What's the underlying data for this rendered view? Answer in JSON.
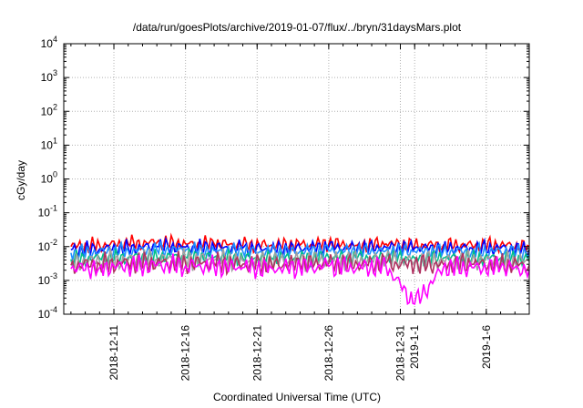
{
  "chart_data": {
    "type": "line",
    "title": "/data/run/goesPlots/archive/2019-01-07/flux/../bryn/31daysMars.plot",
    "xlabel": "Coordinated Universal Time (UTC)",
    "ylabel": "cGy/day",
    "yscale": "log",
    "ylim_exp": [
      -4,
      4
    ],
    "ylim": [
      0.0001,
      10000
    ],
    "xlim": [
      "2018-12-07T12:00",
      "2019-01-09T00:00"
    ],
    "grid": true,
    "legend": "none",
    "y_tick_base": "10",
    "y_tick_exponents": [
      "-4",
      "-3",
      "-2",
      "-1",
      "0",
      "1",
      "2",
      "3",
      "4"
    ],
    "x_ticks": [
      {
        "label": "2018-12-11",
        "date": "2018-12-11"
      },
      {
        "label": "2018-12-16",
        "date": "2018-12-16"
      },
      {
        "label": "2018-12-21",
        "date": "2018-12-21"
      },
      {
        "label": "2018-12-26",
        "date": "2018-12-26"
      },
      {
        "label": "2018-12-31",
        "date": "2018-12-31"
      },
      {
        "label": "2019-1-1",
        "date": "2019-01-01"
      },
      {
        "label": "2019-1-6",
        "date": "2019-01-06"
      }
    ],
    "x": [
      "2018-12-08",
      "2018-12-10",
      "2018-12-12",
      "2018-12-14",
      "2018-12-16",
      "2018-12-18",
      "2018-12-20",
      "2018-12-22",
      "2018-12-24",
      "2018-12-26",
      "2018-12-28",
      "2018-12-30",
      "2019-01-01",
      "2019-01-03",
      "2019-01-05",
      "2019-01-07",
      "2019-01-09"
    ],
    "series": [
      {
        "color": "#ff0000",
        "values": [
          0.01,
          0.011,
          0.012,
          0.013,
          0.012,
          0.012,
          0.011,
          0.011,
          0.011,
          0.012,
          0.011,
          0.012,
          0.011,
          0.011,
          0.011,
          0.011,
          0.01
        ]
      },
      {
        "color": "#0000ff",
        "values": [
          0.008,
          0.0085,
          0.009,
          0.01,
          0.0095,
          0.0095,
          0.009,
          0.0085,
          0.009,
          0.0095,
          0.009,
          0.0095,
          0.009,
          0.009,
          0.009,
          0.009,
          0.008
        ]
      },
      {
        "color": "#1e90ff",
        "values": [
          0.0065,
          0.007,
          0.0075,
          0.008,
          0.0078,
          0.0076,
          0.0072,
          0.007,
          0.0072,
          0.0076,
          0.0072,
          0.0076,
          0.0072,
          0.0072,
          0.0072,
          0.0072,
          0.0066
        ]
      },
      {
        "color": "#00c08a",
        "values": [
          0.0042,
          0.0045,
          0.0048,
          0.005,
          0.0049,
          0.0048,
          0.0046,
          0.0045,
          0.0046,
          0.0048,
          0.0046,
          0.0048,
          0.0045,
          0.0046,
          0.0046,
          0.0046,
          0.0042
        ]
      },
      {
        "color": "#a0a0a0",
        "values": [
          0.0035,
          0.0037,
          0.004,
          0.0042,
          0.0041,
          0.004,
          0.0038,
          0.0037,
          0.0038,
          0.004,
          0.0038,
          0.004,
          0.0037,
          0.0038,
          0.0038,
          0.0038,
          0.0035
        ]
      },
      {
        "color": "#b03060",
        "values": [
          0.0028,
          0.003,
          0.0032,
          0.0034,
          0.0033,
          0.0032,
          0.003,
          0.003,
          0.003,
          0.0032,
          0.003,
          0.0032,
          0.0029,
          0.003,
          0.003,
          0.003,
          0.0028
        ]
      },
      {
        "color": "#ff00ff",
        "values": [
          0.0022,
          0.0024,
          0.0026,
          0.0028,
          0.0027,
          0.0026,
          0.0024,
          0.0023,
          0.0024,
          0.0026,
          0.0024,
          0.0026,
          0.0002,
          0.0024,
          0.0024,
          0.0024,
          0.0021
        ]
      }
    ]
  }
}
